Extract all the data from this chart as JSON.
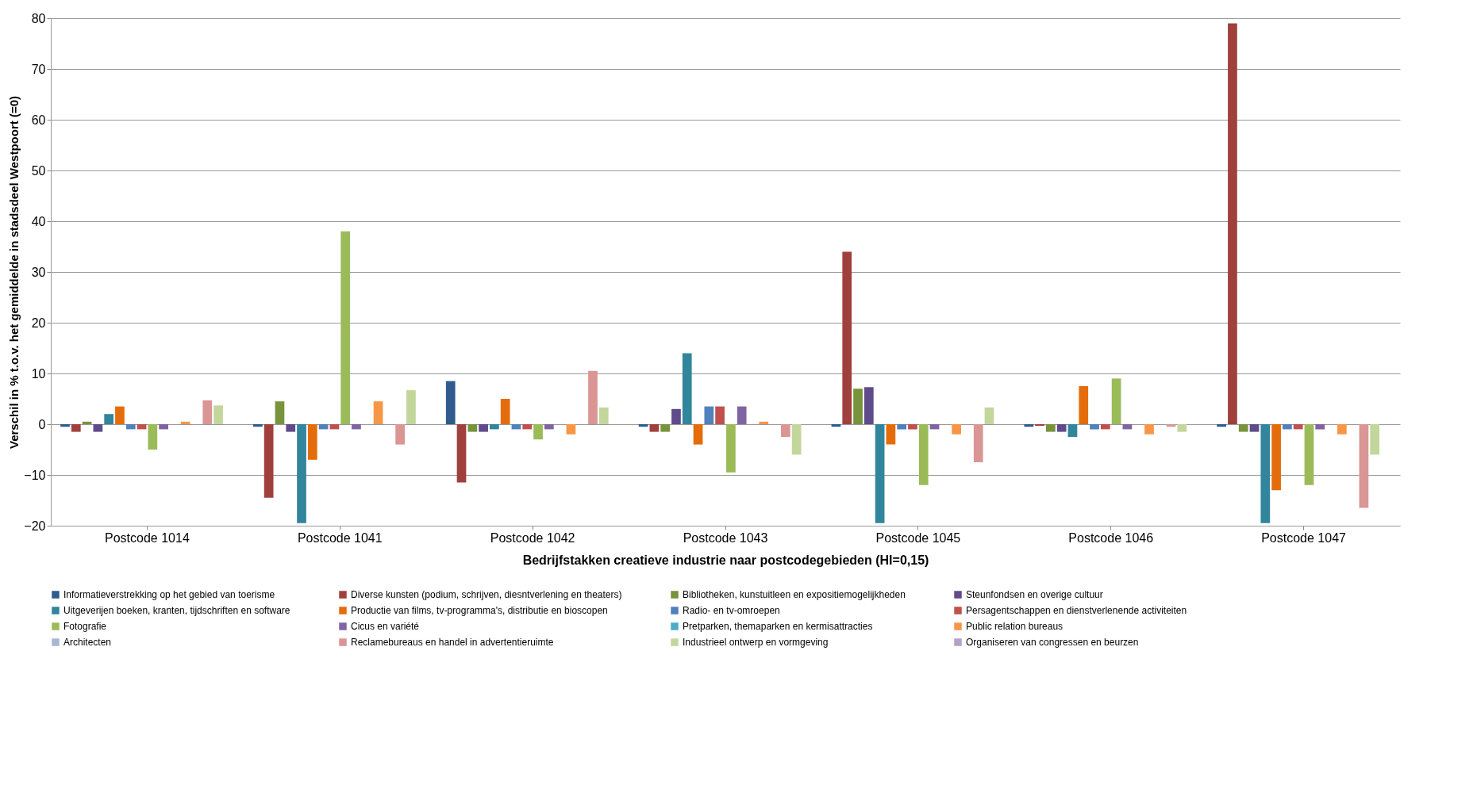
{
  "chart_data": {
    "type": "bar",
    "xlabel": "Bedrijfstakken creatieve industrie naar postcodegebieden (HI=0,15)",
    "ylabel": "Verschil in % t.o.v. het gemiddelde in stadsdeel Westpoort (=0)",
    "categories": [
      "Postcode 1014",
      "Postcode 1041",
      "Postcode 1042",
      "Postcode 1043",
      "Postcode 1045",
      "Postcode 1046",
      "Postcode 1047"
    ],
    "ylim": [
      -20,
      80
    ],
    "yticks": [
      -20,
      -10,
      0,
      10,
      20,
      30,
      40,
      50,
      60,
      70,
      80
    ],
    "grid": "y",
    "legend": "bottom",
    "series": [
      {
        "name": "Informatieverstrekking op het gebied van toerisme",
        "color": "#2f5b8f",
        "values": [
          -0.5,
          -0.5,
          8.5,
          -0.5,
          -0.5,
          -0.5,
          -0.5
        ]
      },
      {
        "name": "Diverse kunsten (podium, schrijven, diesntverlening en theaters)",
        "color": "#a0403d",
        "values": [
          -1.5,
          -14.5,
          -11.5,
          -1.5,
          34,
          -0.3,
          79
        ]
      },
      {
        "name": "Bibliotheken, kunstuitleen en expositiemogelijkheden",
        "color": "#77933c",
        "values": [
          0.5,
          4.5,
          -1.5,
          -1.5,
          7,
          -1.5,
          -1.5
        ]
      },
      {
        "name": "Steunfondsen en overige cultuur",
        "color": "#5f4b8b",
        "values": [
          -1.5,
          -1.5,
          -1.5,
          3,
          7.3,
          -1.5,
          -1.5
        ]
      },
      {
        "name": "Uitgeverijen boeken, kranten, tijdschriften en software",
        "color": "#31859c",
        "values": [
          2,
          -19.5,
          -1,
          14,
          -19.5,
          -2.5,
          -19.5
        ]
      },
      {
        "name": "Productie van films, tv-programma's, distributie en bioscopen",
        "color": "#e46c0a",
        "values": [
          3.5,
          -7,
          5,
          -4,
          -4,
          7.5,
          -13
        ]
      },
      {
        "name": "Radio- en tv-omroepen",
        "color": "#4f81bd",
        "values": [
          -1,
          -1,
          -1,
          3.5,
          -1,
          -1,
          -1
        ]
      },
      {
        "name": "Persagentschappen en dienstverlenende activiteiten",
        "color": "#c0504d",
        "values": [
          -1,
          -1,
          -1,
          3.5,
          -1,
          -1,
          -1
        ]
      },
      {
        "name": "Fotografie",
        "color": "#9bbb59",
        "values": [
          -5,
          38,
          -3,
          -9.5,
          -12,
          9,
          -12
        ]
      },
      {
        "name": "Cicus en variété",
        "color": "#8064a2",
        "values": [
          -1,
          -1,
          -1,
          3.5,
          -1,
          -1,
          -1
        ]
      },
      {
        "name": "Pretparken, themaparken en kermisattracties",
        "color": "#4bacc6",
        "values": [
          0,
          0,
          0,
          0,
          0,
          0,
          0
        ]
      },
      {
        "name": "Public relation bureaus",
        "color": "#f79646",
        "values": [
          0.5,
          4.5,
          -2,
          0.5,
          -2,
          -2,
          -2
        ]
      },
      {
        "name": "Architecten",
        "color": "#a5b8d3",
        "values": [
          0,
          0,
          0,
          0,
          0,
          0,
          0
        ]
      },
      {
        "name": "Reclamebureaus en handel in advertentieruimte",
        "color": "#d99694",
        "values": [
          4.7,
          -4,
          10.5,
          -2.5,
          -7.5,
          -0.5,
          -16.5
        ]
      },
      {
        "name": "Industrieel ontwerp en vormgeving",
        "color": "#c3d69b",
        "values": [
          3.7,
          6.7,
          3.3,
          -6,
          3.3,
          -1.5,
          -6
        ]
      },
      {
        "name": "Organiseren van congressen en beurzen",
        "color": "#b3a2c7",
        "values": [
          0,
          0,
          0,
          0,
          0,
          0,
          0
        ]
      }
    ]
  }
}
